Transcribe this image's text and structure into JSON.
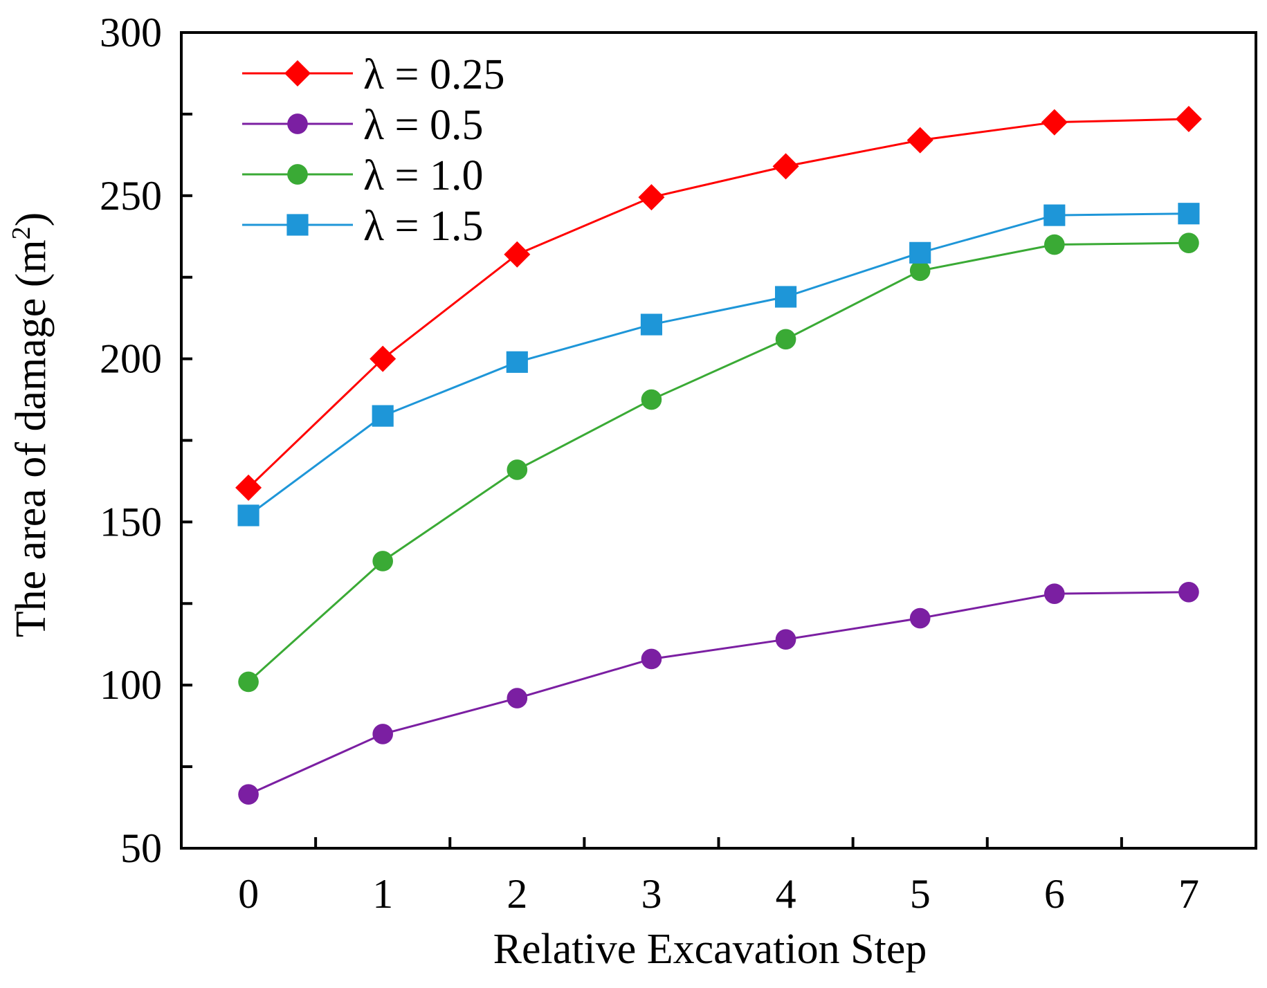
{
  "chart_data": {
    "type": "line",
    "title": "",
    "xlabel": "Relative Excavation Step",
    "ylabel": "The area of  damage (m",
    "ylabel_sup": "2",
    "ylabel_close": ")",
    "x": [
      0,
      1,
      2,
      3,
      4,
      5,
      6,
      7
    ],
    "x_tick_labels": [
      "0",
      "1",
      "2",
      "3",
      "4",
      "5",
      "6",
      "7"
    ],
    "xlim": [
      -0.5,
      7.5
    ],
    "ylim": [
      50,
      300
    ],
    "y_tick_labels": [
      "50",
      "100",
      "150",
      "200",
      "250",
      "300"
    ],
    "y_ticks": [
      50,
      75,
      100,
      125,
      150,
      175,
      200,
      225,
      250,
      275,
      300
    ],
    "grid": false,
    "legend_position": "top-left",
    "series": [
      {
        "name": "λ = 0.25",
        "color": "#ff0000",
        "marker": "diamond",
        "values": [
          160.5,
          200,
          232,
          249.5,
          259,
          267,
          272.5,
          273.5
        ]
      },
      {
        "name": "λ = 0.5",
        "color": "#7b1fa2",
        "marker": "circle",
        "values": [
          66.5,
          85,
          96,
          108,
          114,
          120.5,
          128,
          128.5
        ]
      },
      {
        "name": "λ = 1.0",
        "color": "#3aaa35",
        "marker": "circle",
        "values": [
          101,
          138,
          166,
          187.5,
          206,
          227,
          235,
          235.5
        ]
      },
      {
        "name": "λ = 1.5",
        "color": "#1e96d8",
        "marker": "square",
        "values": [
          152,
          182.5,
          199,
          210.5,
          219,
          232.5,
          244,
          244.5
        ]
      }
    ]
  }
}
